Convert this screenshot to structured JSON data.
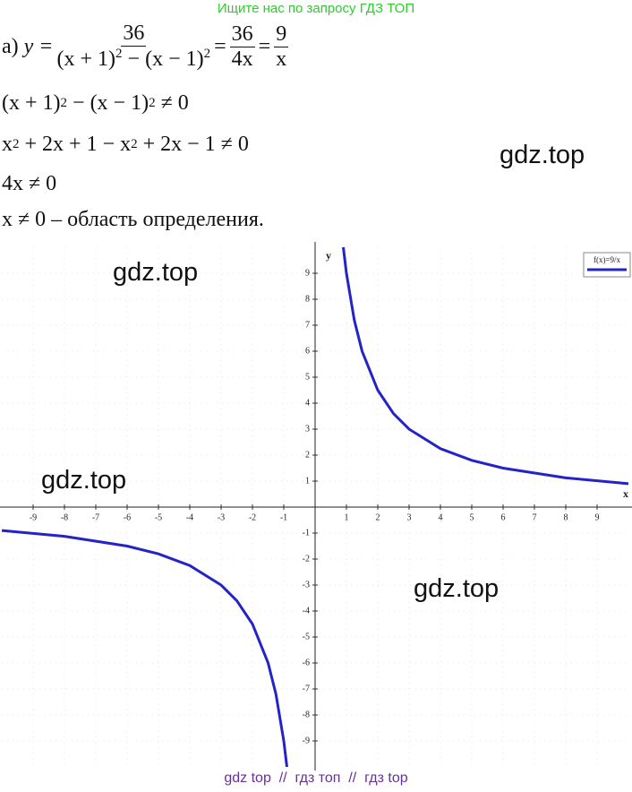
{
  "header": {
    "banner": "Ищите нас по запросу ГДЗ ТОП"
  },
  "solution": {
    "label": "а)",
    "line1": {
      "lhs": "y =",
      "frac1": {
        "num": "36",
        "den": [
          "(x + 1)",
          "2",
          " − (x − 1)",
          "2"
        ]
      },
      "eq1": "=",
      "frac2": {
        "num": "36",
        "den": "4x"
      },
      "eq2": "=",
      "frac3": {
        "num": "9",
        "den": "x"
      }
    },
    "line2": [
      "(x + 1)",
      "2",
      " − (x − 1)",
      "2",
      " ≠ 0"
    ],
    "line3": [
      "x",
      "2",
      " + 2x + 1 − x",
      "2",
      " + 2x − 1 ≠ 0"
    ],
    "line4": "4x ≠ 0",
    "line5": {
      "math": "x ≠ 0",
      "text": " – область определения."
    }
  },
  "watermarks": [
    "gdz.top",
    "gdz.top",
    "gdz.top",
    "gdz.top"
  ],
  "chart_data": {
    "type": "line",
    "x_label": "x",
    "y_label": "y",
    "x": [
      -10,
      -8,
      -6,
      -5,
      -4,
      -3,
      -2.5,
      -2,
      -1.5,
      -1.25,
      -1,
      -0.9,
      0,
      0.9,
      1,
      1.25,
      1.5,
      2,
      2.5,
      3,
      4,
      5,
      6,
      8,
      10
    ],
    "series": [
      {
        "name": "f(x)=9/x",
        "color": "#2323c8",
        "values": [
          -0.9,
          -1.125,
          -1.5,
          -1.8,
          -2.25,
          -3,
          -3.6,
          -4.5,
          -6,
          -7.2,
          -9,
          -10,
          null,
          10,
          9,
          7.2,
          6,
          4.5,
          3.6,
          3,
          2.25,
          1.8,
          1.5,
          1.125,
          0.9
        ]
      }
    ],
    "xlim": [
      -10,
      10
    ],
    "ylim": [
      -10,
      10
    ],
    "xticks": [
      -9,
      -8,
      -7,
      -6,
      -5,
      -4,
      -3,
      -2,
      -1,
      1,
      2,
      3,
      4,
      5,
      6,
      7,
      8,
      9
    ],
    "yticks": [
      -9,
      -8,
      -7,
      -6,
      -5,
      -4,
      -3,
      -2,
      -1,
      1,
      2,
      3,
      4,
      5,
      6,
      7,
      8,
      9
    ],
    "grid": true,
    "legend": "top-right"
  },
  "footer": [
    "gdz top",
    "//",
    "гдз топ",
    "//",
    "гдз top"
  ]
}
